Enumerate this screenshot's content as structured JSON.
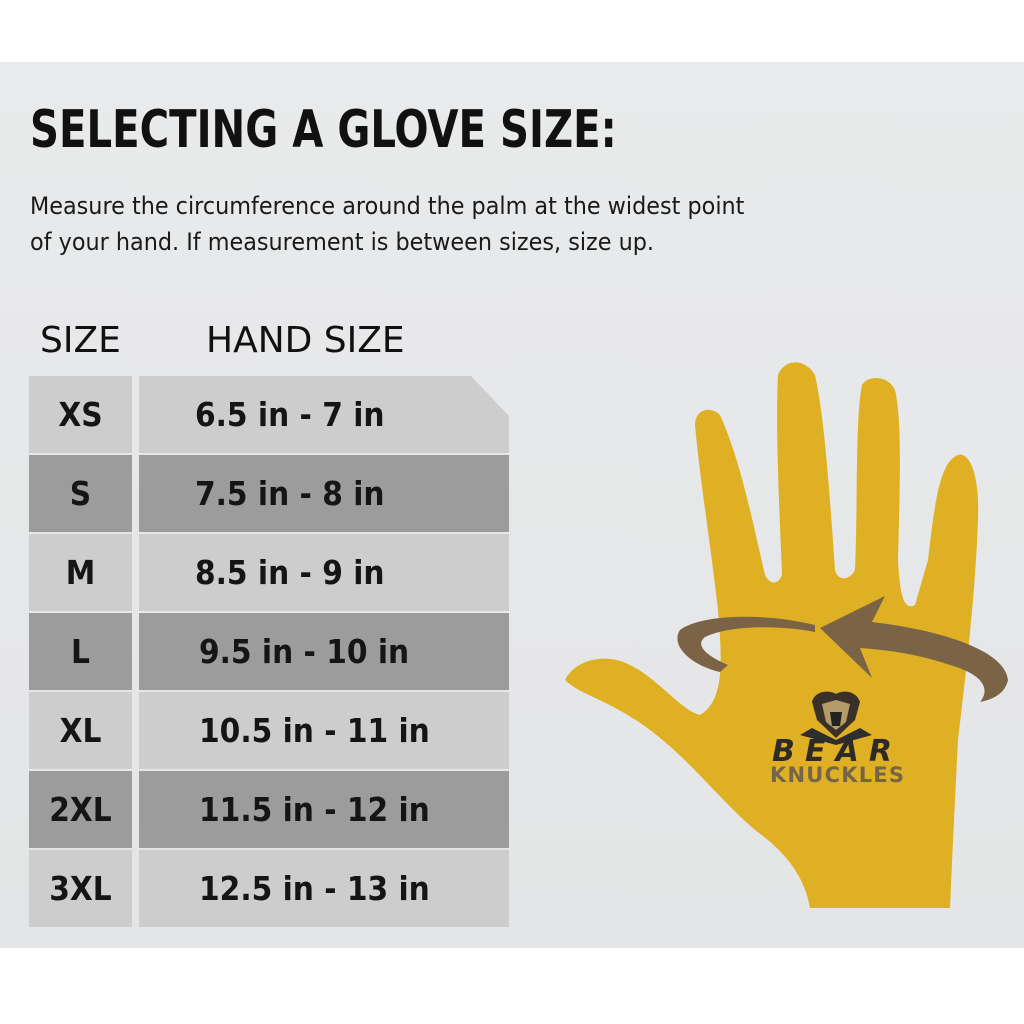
{
  "title": "SELECTING A GLOVE SIZE:",
  "description": [
    "Measure the circumference around the palm at the widest point",
    "of your hand. If measurement is between sizes, size up."
  ],
  "table": {
    "headers": {
      "size": "SIZE",
      "hand_size": "HAND SIZE"
    },
    "rows": [
      {
        "size": "XS",
        "hand_size": "6.5 in - 7 in"
      },
      {
        "size": "S",
        "hand_size": "7.5 in - 8 in"
      },
      {
        "size": "M",
        "hand_size": "8.5 in - 9 in"
      },
      {
        "size": "L",
        "hand_size": "9.5 in - 10 in"
      },
      {
        "size": "XL",
        "hand_size": "10.5 in - 11 in"
      },
      {
        "size": "2XL",
        "hand_size": "11.5 in - 12 in"
      },
      {
        "size": "3XL",
        "hand_size": "12.5 in - 13 in"
      }
    ]
  },
  "logo": {
    "line1": "BEAR",
    "line2": "KNUCKLES"
  },
  "colors": {
    "hand": "#e0b024",
    "arrow": "#7a6445",
    "row_light": "#cdcdcd",
    "row_dark": "#9c9c9c"
  }
}
